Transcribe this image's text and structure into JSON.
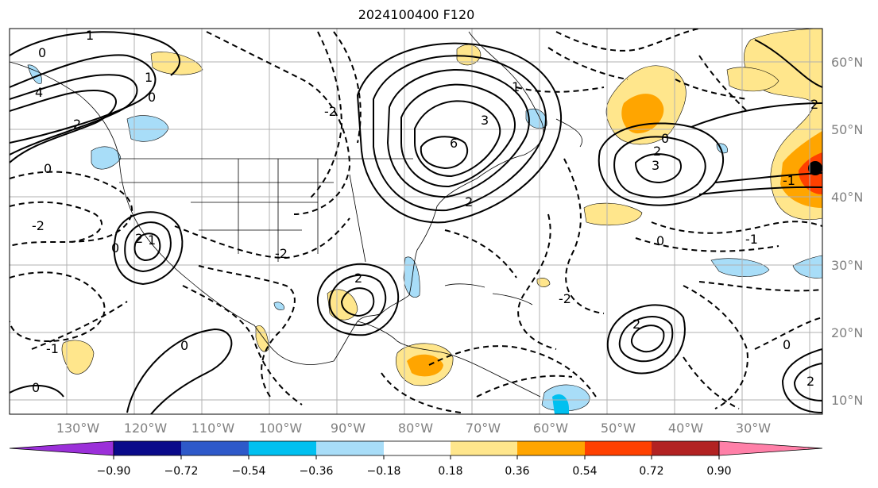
{
  "title": "2024100400 F120",
  "map": {
    "lat_labels": [
      "60°N",
      "50°N",
      "40°N",
      "30°N",
      "20°N",
      "10°N"
    ],
    "lon_labels": [
      "130°W",
      "120°W",
      "110°W",
      "100°W",
      "90°W",
      "80°W",
      "70°W",
      "60°W",
      "50°W",
      "40°W",
      "30°W"
    ],
    "grid": true,
    "grid_color": "#b0b0b0",
    "contour_color": "#000000",
    "contour_labels": [
      "0",
      "1",
      "4",
      "2",
      "0",
      "1",
      "0",
      "-2",
      "6",
      "3",
      "2",
      "-2",
      "1",
      "0",
      "2",
      "3",
      "-1",
      "2",
      "0",
      "-2",
      "-1",
      "0",
      "0",
      "2",
      "0",
      "1",
      "2",
      "-1",
      "2",
      "0",
      "-2",
      "2"
    ]
  },
  "colorbar": {
    "tick_labels": [
      "−0.90",
      "−0.72",
      "−0.54",
      "−0.36",
      "−0.18",
      "0.18",
      "0.36",
      "0.54",
      "0.72",
      "0.90"
    ],
    "colors": [
      "#9b30d9",
      "#0a0a8a",
      "#2e59c9",
      "#00c0f0",
      "#a8ddf8",
      "#ffffff",
      "#ffe68c",
      "#ffa500",
      "#ff4000",
      "#b22222",
      "#ff80a8"
    ],
    "under_color": "#9b30d9",
    "over_color": "#ff80a8"
  },
  "shading_colors": {
    "light_yellow": "#ffe68c",
    "orange": "#ffa500",
    "red_orange": "#ff4000",
    "light_blue": "#a8ddf8",
    "blue": "#00c0f0"
  }
}
